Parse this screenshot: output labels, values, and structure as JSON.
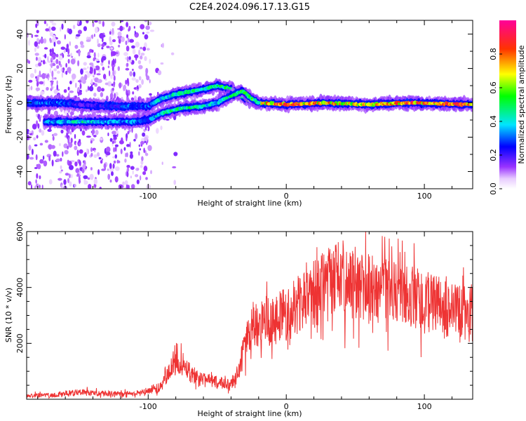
{
  "figure": {
    "title": "C2E4.2024.096.17.13.G15"
  },
  "chart_data": [
    {
      "type": "heatmap",
      "title": "C2E4.2024.096.17.13.G15",
      "xlabel": "Height of straight line (km)",
      "ylabel": "Frequency (Hz)",
      "xlim": [
        -188,
        135
      ],
      "ylim": [
        -50,
        48
      ],
      "xticks": [
        -100,
        0,
        100
      ],
      "yticks": [
        -40,
        -20,
        0,
        20,
        40
      ],
      "grid": false,
      "colorbar": {
        "label": "Normalized spectral amplitude",
        "range": [
          0.0,
          1.0
        ],
        "ticks": [
          0.0,
          0.2,
          0.4,
          0.6,
          0.8
        ]
      },
      "ridges": [
        {
          "points": [
            [
              -188,
              0
            ],
            [
              -165,
              0
            ],
            [
              -150,
              -1
            ],
            [
              -130,
              -2
            ],
            [
              -110,
              -2
            ],
            [
              -100,
              -2
            ],
            [
              -92,
              2
            ],
            [
              -80,
              5
            ],
            [
              -60,
              8
            ],
            [
              -50,
              10
            ],
            [
              -40,
              8
            ],
            [
              -35,
              5
            ],
            [
              -28,
              2
            ],
            [
              -20,
              0
            ],
            [
              0,
              -1
            ],
            [
              30,
              0
            ],
            [
              60,
              -1
            ],
            [
              90,
              0
            ],
            [
              135,
              -1
            ]
          ],
          "amplitude": [
            0.3,
            0.35,
            0.2,
            0.25,
            0.3,
            0.3,
            0.4,
            0.45,
            0.45,
            0.5,
            0.5,
            0.5,
            0.6,
            0.7,
            0.85,
            0.75,
            0.7,
            0.85,
            0.8
          ]
        },
        {
          "points": [
            [
              -175,
              -11
            ],
            [
              -150,
              -11
            ],
            [
              -130,
              -11
            ],
            [
              -110,
              -11
            ],
            [
              -100,
              -10
            ],
            [
              -90,
              -6
            ],
            [
              -75,
              -3
            ],
            [
              -60,
              -2
            ],
            [
              -50,
              0
            ],
            [
              -40,
              4
            ],
            [
              -32,
              7
            ],
            [
              -26,
              3
            ],
            [
              -20,
              0
            ]
          ],
          "amplitude": [
            0.35,
            0.45,
            0.35,
            0.35,
            0.3,
            0.45,
            0.5,
            0.45,
            0.4,
            0.5,
            0.55,
            0.55,
            0.6
          ]
        }
      ]
    },
    {
      "type": "line",
      "xlabel": "Height of straight line (km)",
      "ylabel": "SNR (10 * v/v)",
      "xlim": [
        -188,
        135
      ],
      "ylim": [
        0,
        6000
      ],
      "xticks": [
        -100,
        0,
        100
      ],
      "yticks": [
        2000,
        4000,
        6000
      ],
      "grid": false,
      "color": "#ee3333",
      "series": [
        {
          "x": [
            -188,
            -170,
            -150,
            -130,
            -110,
            -100,
            -90,
            -82,
            -75,
            -68,
            -60,
            -50,
            -40,
            -35,
            -30,
            -25,
            -20,
            -10,
            0,
            10,
            20,
            30,
            40,
            50,
            60,
            70,
            80,
            90,
            100,
            110,
            120,
            135
          ],
          "values": [
            120,
            150,
            250,
            200,
            180,
            300,
            500,
            1200,
            1300,
            900,
            700,
            600,
            550,
            800,
            2000,
            2600,
            2700,
            2900,
            3100,
            3400,
            3800,
            4100,
            4300,
            4100,
            3900,
            3800,
            3700,
            3700,
            3500,
            3300,
            3100,
            3000
          ]
        }
      ]
    }
  ]
}
